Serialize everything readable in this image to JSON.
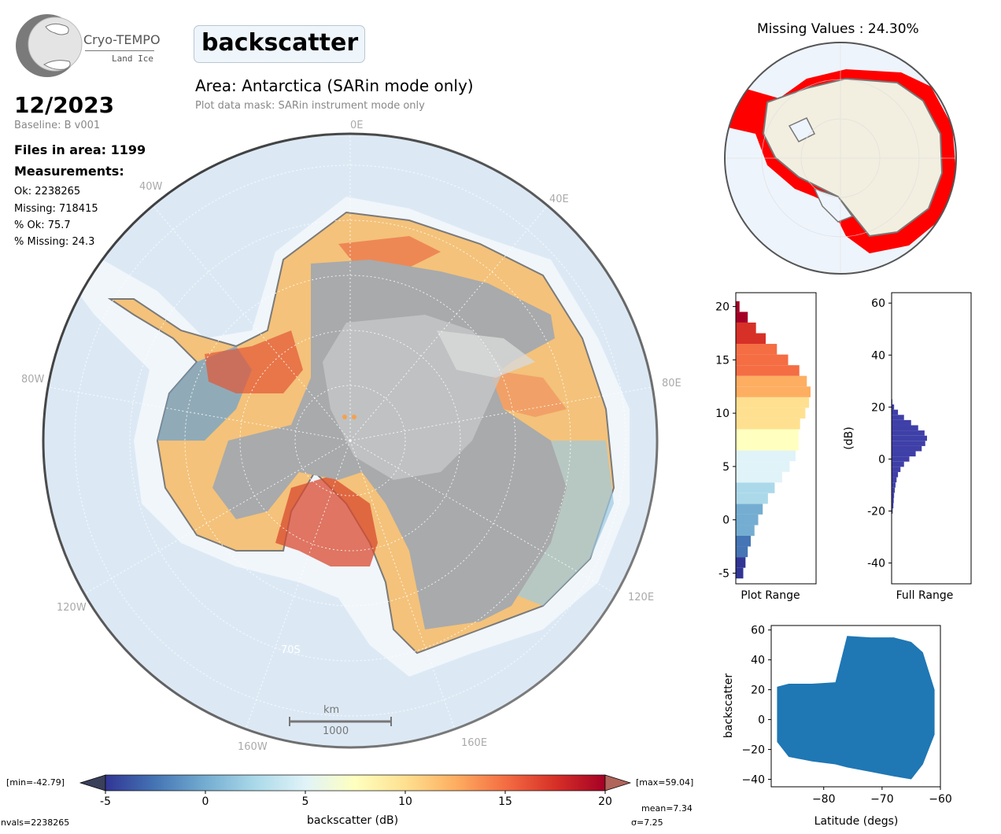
{
  "logo": {
    "name": "Cryo-TEMPO",
    "subtitle": "Land Ice"
  },
  "title": "backscatter",
  "area_title": "Area: Antarctica (SARin mode only)",
  "mask_note": "Plot data mask: SARin instrument mode only",
  "date": "12/2023",
  "baseline": "Baseline: B v001",
  "files": "Files in area: 1199",
  "measurements_label": "Measurements:",
  "stats": {
    "ok": "Ok: 2238265",
    "missing": "Missing: 718415",
    "pct_ok": "% Ok: 75.7",
    "pct_missing": "% Missing: 24.3"
  },
  "map": {
    "lon_labels": [
      "0E",
      "40W",
      "40E",
      "80W",
      "80E",
      "120W",
      "120E",
      "160W",
      "160E"
    ],
    "lat_label": "70S",
    "scalebar": {
      "unit": "km",
      "value": "1000"
    },
    "colors": {
      "ocean": "#dce9f5",
      "ice_shelf": "#f1f6fb",
      "coast": "#777777",
      "interior": "#a9aaab"
    }
  },
  "missing_map": {
    "title": "Missing Values : 24.30%",
    "colors": {
      "land": "#f2efe0",
      "missing": "#ff0000"
    }
  },
  "colorbar": {
    "min_label": "[min=-42.79]",
    "max_label": "[max=59.04]",
    "ticks": [
      "-5",
      "0",
      "5",
      "10",
      "15",
      "20"
    ],
    "label": "backscatter (dB)",
    "nvals": "nvals=2238265",
    "mean": "mean=7.34",
    "sigma": "σ=7.25",
    "colors": [
      "#313695",
      "#4575b4",
      "#74add1",
      "#abd9e9",
      "#e0f3f8",
      "#ffffbf",
      "#fee090",
      "#fdae61",
      "#f46d43",
      "#d73027",
      "#a50026"
    ]
  },
  "chart_data": [
    {
      "type": "histogram",
      "title": "",
      "xlabel": "Plot Range",
      "ylabel": "",
      "ylim": [
        -6,
        21.3
      ],
      "y_ticks": [
        "-5",
        "0",
        "5",
        "10",
        "15",
        "20"
      ],
      "bins_center": [
        -5,
        -4,
        -3,
        -2,
        -1,
        0,
        1,
        2,
        3,
        4,
        5,
        6,
        7,
        8,
        9,
        10,
        11,
        12,
        13,
        14,
        15,
        16,
        17,
        18,
        19,
        20
      ],
      "frequency": [
        0.1,
        0.13,
        0.16,
        0.2,
        0.25,
        0.3,
        0.36,
        0.43,
        0.52,
        0.62,
        0.72,
        0.8,
        0.84,
        0.84,
        0.86,
        0.93,
        0.98,
        1.0,
        0.95,
        0.85,
        0.7,
        0.55,
        0.4,
        0.27,
        0.16,
        0.05
      ]
    },
    {
      "type": "histogram",
      "title": "",
      "xlabel": "Full Range",
      "ylabel": "(dB)",
      "ylim": [
        -48,
        64
      ],
      "y_ticks": [
        "-40",
        "-20",
        "0",
        "20",
        "40",
        "60"
      ],
      "bins_center": [
        -22,
        -20,
        -18,
        -16,
        -14,
        -12,
        -10,
        -8,
        -6,
        -4,
        -2,
        0,
        2,
        4,
        6,
        8,
        10,
        12,
        14,
        16,
        18,
        20,
        22
      ],
      "frequency": [
        0.01,
        0.03,
        0.05,
        0.06,
        0.07,
        0.09,
        0.11,
        0.14,
        0.18,
        0.25,
        0.35,
        0.5,
        0.68,
        0.85,
        0.95,
        1.0,
        0.93,
        0.75,
        0.55,
        0.35,
        0.18,
        0.07,
        0.02
      ],
      "color": "#3f3fa8"
    },
    {
      "type": "scatter",
      "title": "",
      "xlabel": "Latitude (degs)",
      "ylabel": "backscatter",
      "xlim": [
        -89,
        -60
      ],
      "ylim": [
        -45,
        63
      ],
      "x_ticks": [
        "−80",
        "−70",
        "−60"
      ],
      "y_ticks": [
        "−40",
        "−20",
        "0",
        "20",
        "40",
        "60"
      ],
      "envelope": [
        {
          "lat": -88,
          "low": -15,
          "high": 22
        },
        {
          "lat": -86,
          "low": -25,
          "high": 24
        },
        {
          "lat": -82,
          "low": -28,
          "high": 24
        },
        {
          "lat": -78,
          "low": -30,
          "high": 25
        },
        {
          "lat": -76,
          "low": -32,
          "high": 56
        },
        {
          "lat": -72,
          "low": -35,
          "high": 55
        },
        {
          "lat": -68,
          "low": -38,
          "high": 55
        },
        {
          "lat": -65,
          "low": -40,
          "high": 52
        },
        {
          "lat": -63,
          "low": -30,
          "high": 45
        },
        {
          "lat": -61,
          "low": -10,
          "high": 20
        }
      ],
      "color": "#1f77b4"
    }
  ]
}
